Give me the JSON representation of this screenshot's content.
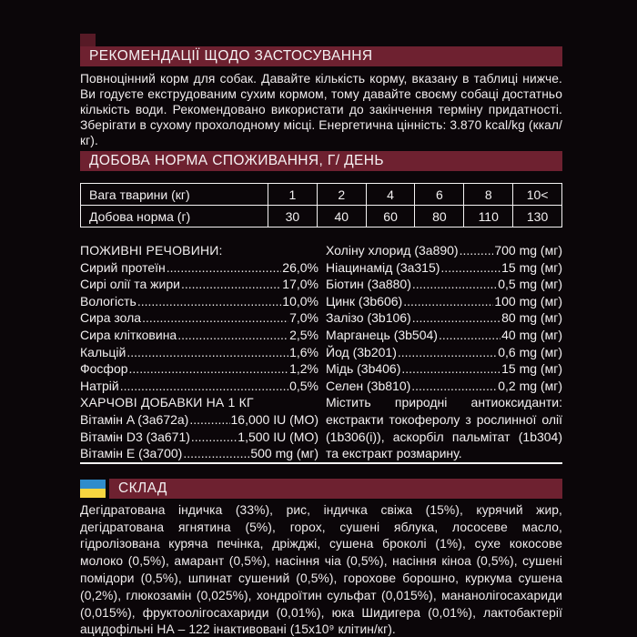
{
  "colors": {
    "background": "#0B0609",
    "header_bar": "#6E2130",
    "accent_tab": "#571A26",
    "text": "#F3F0F1",
    "flag_blue": "#2F8CCB",
    "flag_yellow": "#F7D640"
  },
  "recommendations": {
    "title": "РЕКОМЕНДАЦІЇ ЩОДО ЗАСТОСУВАННЯ",
    "body": "Повноцінний корм для собак. Давайте кількість корму, вказану в таблиці нижче. Ви годуєте екструдованим сухим кормом, тому давайте своєму собаці достатньо кількість води. Рекомендовано використати до закінчення терміну придатності. Зберігати в сухому прохолодному місці. Енергетична цінність: 3.870 kcal/kg (ккал/кг)."
  },
  "daily_norm": {
    "title": "ДОБОВА НОРМА СПОЖИВАННЯ, Г/ ДЕНЬ",
    "table": {
      "rows": [
        {
          "header": "Вага тварини (кг)",
          "cells": [
            "1",
            "2",
            "4",
            "6",
            "8",
            "10<"
          ]
        },
        {
          "header": "Добова норма (г)",
          "cells": [
            "30",
            "40",
            "60",
            "80",
            "110",
            "130"
          ]
        }
      ]
    }
  },
  "nutrients_left": {
    "heading": "ПОЖИВНІ РЕЧОВИНИ:",
    "rows": [
      {
        "label": "Сирий протеїн",
        "value": "26,0%"
      },
      {
        "label": "Сирі олії та жири",
        "value": "17,0%"
      },
      {
        "label": "Вологість",
        "value": "10,0%"
      },
      {
        "label": "Сира зола",
        "value": "7,0%"
      },
      {
        "label": "Сира клітковина",
        "value": "2,5%"
      },
      {
        "label": "Кальцій",
        "value": "1,6%"
      },
      {
        "label": "Фосфор",
        "value": "1,2%"
      },
      {
        "label": "Натрій",
        "value": "0,5%"
      }
    ],
    "additives_heading": "ХАРЧОВІ ДОБАВКИ НА 1 КГ",
    "vitamin_rows": [
      {
        "label": "Вітамін A (3a672a)",
        "value": "16,000 IU (МО)"
      },
      {
        "label": "Вітамін D3 (3a671)",
        "value": "1,500 IU (МО)"
      },
      {
        "label": "Вітамін E (3a700)",
        "value": "500 mg (мг)"
      }
    ]
  },
  "nutrients_right": {
    "rows": [
      {
        "label": "Холіну хлорид (3a890)",
        "value": "700 mg (мг)"
      },
      {
        "label": "Ніацинамід (3a315)",
        "value": "15 mg (мг)"
      },
      {
        "label": "Біотин (3a880)",
        "value": "0,5 mg (мг)"
      },
      {
        "label": "Цинк (3b606)",
        "value": "100 mg (мг)"
      },
      {
        "label": "Залізо (3b106)",
        "value": "80 mg (мг)"
      },
      {
        "label": "Марганець (3b504)",
        "value": "40 mg (мг)"
      },
      {
        "label": "Йод (3b201)",
        "value": "0,6 mg (мг)"
      },
      {
        "label": "Мідь (3b406)",
        "value": "15 mg (мг)"
      },
      {
        "label": "Селен (3b810)",
        "value": "0,2 mg (мг)"
      }
    ],
    "antioxidants": "Містить природні антиоксиданти: екстракти токоферолу з рослинної олії (1b306(i)), аскорбіл пальмітат (1b304) та екстракт розмарину."
  },
  "composition": {
    "title": "СКЛАД",
    "flag_icon": "ukraine-flag",
    "body": "Дегідратована індичка (33%), рис, індичка свіжа (15%), курячий жир, дегідратована ягнятина (5%), горох, сушені яблука, лососеве масло, гідролізована куряча печінка, дріжджі, сушена броколі (1%), сухе кокосове молоко (0,5%), амарант (0,5%), насіння чіа (0,5%), насіння кіноа (0,5%), сушені помідори (0,5%), шпинат сушений (0,5%), горохове борошно, куркума сушена (0,2%), глюкозамін (0,025%), хондроїтин сульфат (0,015%), мананолігосахариди (0,015%), фруктоолігосахариди (0,01%), юка Шидигера (0,01%), лактобактерії ацидофільні НА – 122 інактивовані (15х10⁹ клітин/кг)."
  }
}
